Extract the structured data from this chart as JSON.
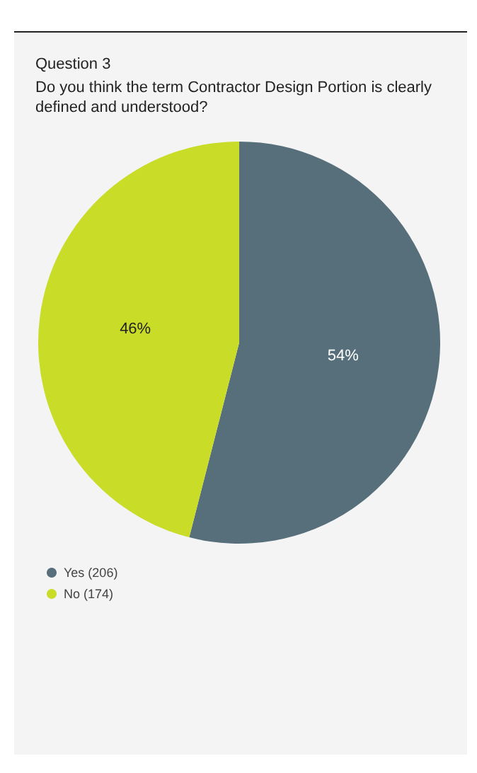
{
  "chart_data": {
    "type": "pie",
    "title": "Question 3",
    "subtitle": "Do you think the term Contractor Design Portion is clearly defined and understood?",
    "categories": [
      "Yes (206)",
      "No (174)"
    ],
    "values": [
      54,
      46
    ],
    "colors": [
      "#566f7b",
      "#c8dc28"
    ],
    "value_labels": [
      "54%",
      "46%"
    ],
    "legend": "bottom left"
  }
}
